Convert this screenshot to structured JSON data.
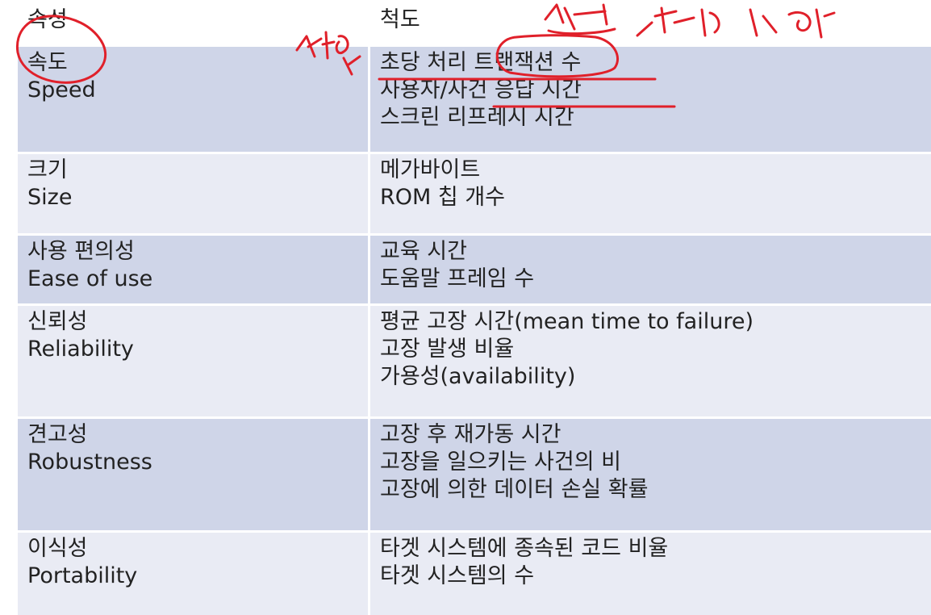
{
  "header": {
    "attribute": "속성",
    "measure": "척도"
  },
  "rows": [
    {
      "attr_ko": "속도",
      "attr_en": "Speed",
      "measures": [
        "초당 처리 트랜잭션 수",
        "사용자/사건 응답 시간",
        "스크린 리프레시 시간"
      ]
    },
    {
      "attr_ko": "크기",
      "attr_en": "Size",
      "measures": [
        "메가바이트",
        "ROM 칩 개수"
      ]
    },
    {
      "attr_ko": "사용 편의성",
      "attr_en": "Ease of use",
      "measures": [
        "교육 시간",
        "도움말 프레임 수"
      ]
    },
    {
      "attr_ko": "신뢰성",
      "attr_en": "Reliability",
      "measures": [
        "평균 고장 시간(mean time to failure)",
        "고장 발생 비율",
        "가용성(availability)"
      ]
    },
    {
      "attr_ko": "견고성",
      "attr_en": "Robustness",
      "measures": [
        "고장 후 재가동 시간",
        "고장을 일으키는 사건의 비",
        "고장에 의한 데이터 손실 확률"
      ]
    },
    {
      "attr_ko": "이식성",
      "attr_en": "Portability",
      "measures": [
        "타겟 시스템에 종속된 코드 비율",
        "타겟 시스템의 수"
      ]
    }
  ],
  "annotations": {
    "ink_color": "#e0202a"
  }
}
